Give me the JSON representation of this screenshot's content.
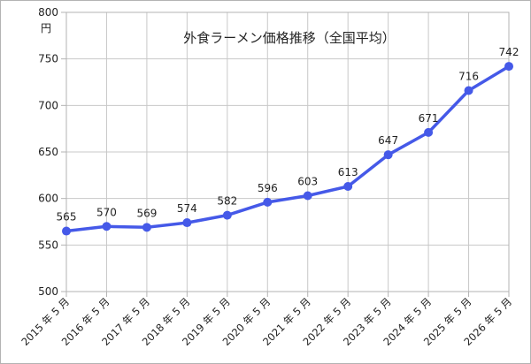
{
  "chart_data": {
    "type": "line",
    "title": "外食ラーメン価格推移（全国平均）",
    "ylabel": "円",
    "xlabel": "",
    "categories": [
      "2015 年 5 月",
      "2016 年 5 月",
      "2017 年 5 月",
      "2018 年 5 月",
      "2019 年 5 月",
      "2020 年 5 月",
      "2021 年 5 月",
      "2022 年 5 月",
      "2023 年 5 月",
      "2024 年 5 月",
      "2025 年 5 月",
      "2026 年 5 月"
    ],
    "series": [
      {
        "values": [
          565,
          570,
          569,
          574,
          582,
          596,
          603,
          613,
          647,
          671,
          716,
          742
        ]
      }
    ],
    "ylim": [
      500,
      800
    ],
    "yticks": [
      "500",
      "550",
      "600",
      "650",
      "700",
      "750",
      "800"
    ],
    "data_labels": [
      "565",
      "570",
      "569",
      "574",
      "582",
      "596",
      "603",
      "613",
      "647",
      "671",
      "716",
      "742"
    ],
    "grid": true,
    "legend": "none",
    "colors": {
      "line": "#4559e8",
      "grid": "#c8c8c8",
      "axis": "#b3b3b3"
    }
  }
}
